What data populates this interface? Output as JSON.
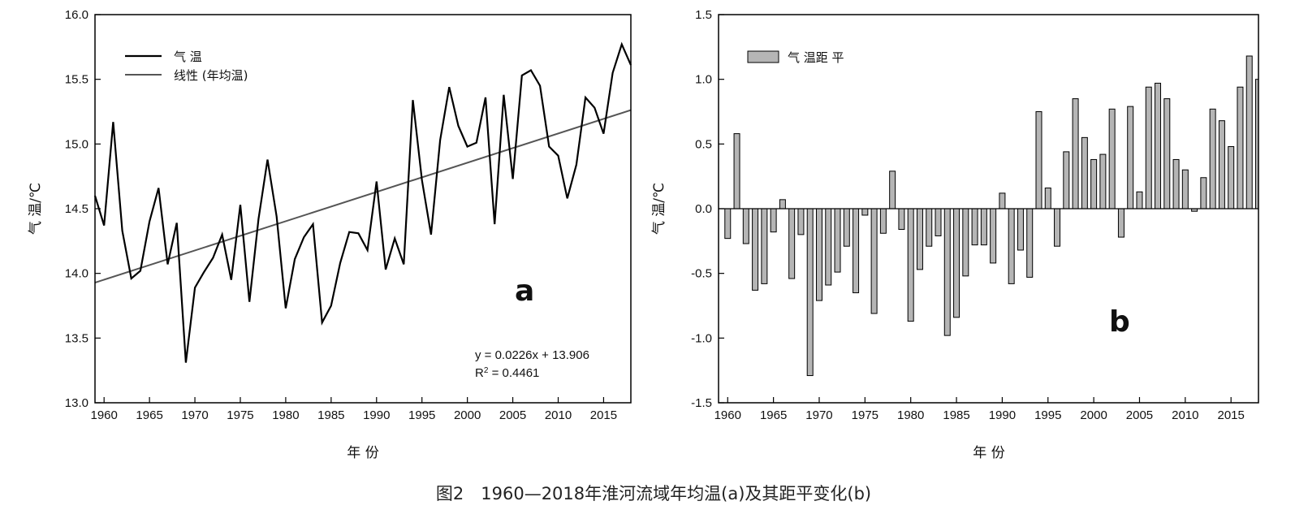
{
  "caption": "图2　1960—2018年淮河流域年均温(a)及其距平变化(b)",
  "chart_data": [
    {
      "panel": "a",
      "type": "line",
      "ylabel": "气 温/℃",
      "xlabel": "年 份",
      "xlim": [
        1959,
        2018
      ],
      "ylim": [
        13.0,
        16.0
      ],
      "xticks": [
        "1960",
        "1965",
        "1970",
        "1975",
        "1980",
        "1985",
        "1990",
        "1995",
        "2000",
        "2005",
        "2010",
        "2015"
      ],
      "yticks": [
        "13.0",
        "13.5",
        "14.0",
        "14.5",
        "15.0",
        "15.5",
        "16.0"
      ],
      "legend": [
        "气 温",
        "线性 (年均温)"
      ],
      "legend_position": "top-left",
      "equation_line1": "y = 0.0226x + 13.906",
      "equation_line2_prefix": "R",
      "equation_line2_sup": "2",
      "equation_line2_suffix": " = 0.4461",
      "trend": {
        "slope": 0.0226,
        "intercept": 13.906,
        "x_start": 1959
      },
      "x": [
        1959,
        1960,
        1961,
        1962,
        1963,
        1964,
        1965,
        1966,
        1967,
        1968,
        1969,
        1970,
        1971,
        1972,
        1973,
        1974,
        1975,
        1976,
        1977,
        1978,
        1979,
        1980,
        1981,
        1982,
        1983,
        1984,
        1985,
        1986,
        1987,
        1988,
        1989,
        1990,
        1991,
        1992,
        1993,
        1994,
        1995,
        1996,
        1997,
        1998,
        1999,
        2000,
        2001,
        2002,
        2003,
        2004,
        2005,
        2006,
        2007,
        2008,
        2009,
        2010,
        2011,
        2012,
        2013,
        2014,
        2015,
        2016,
        2017,
        2018
      ],
      "series": [
        {
          "name": "气 温",
          "values": [
            14.6,
            14.37,
            15.17,
            14.33,
            13.96,
            14.02,
            14.4,
            14.66,
            14.07,
            14.39,
            13.31,
            13.89,
            14.01,
            14.12,
            14.3,
            13.95,
            14.53,
            13.78,
            14.42,
            14.88,
            14.44,
            13.73,
            14.11,
            14.28,
            14.38,
            13.62,
            13.75,
            14.08,
            14.32,
            14.31,
            14.18,
            14.71,
            14.03,
            14.27,
            14.07,
            15.34,
            14.72,
            14.3,
            15.03,
            15.44,
            15.14,
            14.98,
            15.01,
            15.36,
            14.38,
            15.38,
            14.73,
            15.53,
            15.57,
            15.45,
            14.98,
            14.91,
            14.58,
            14.84,
            15.36,
            15.28,
            15.08,
            15.55,
            15.77,
            15.61
          ]
        }
      ],
      "panel_label": "a"
    },
    {
      "panel": "b",
      "type": "bar",
      "ylabel": "气 温/℃",
      "xlabel": "年 份",
      "xlim": [
        1959,
        2018
      ],
      "ylim": [
        -1.5,
        1.5
      ],
      "xticks": [
        "1960",
        "1965",
        "1970",
        "1975",
        "1980",
        "1985",
        "1990",
        "1995",
        "2000",
        "2005",
        "2010",
        "2015"
      ],
      "yticks": [
        "-1.5",
        "-1.0",
        "-0.5",
        "0.0",
        "0.5",
        "1.0",
        "1.5"
      ],
      "legend": [
        "气 温距 平"
      ],
      "legend_position": "top-left",
      "x": [
        1960,
        1961,
        1962,
        1963,
        1964,
        1965,
        1966,
        1967,
        1968,
        1969,
        1970,
        1971,
        1972,
        1973,
        1974,
        1975,
        1976,
        1977,
        1978,
        1979,
        1980,
        1981,
        1982,
        1983,
        1984,
        1985,
        1986,
        1987,
        1988,
        1989,
        1990,
        1991,
        1992,
        1993,
        1994,
        1995,
        1996,
        1997,
        1998,
        1999,
        2000,
        2001,
        2002,
        2003,
        2004,
        2005,
        2006,
        2007,
        2008,
        2009,
        2010,
        2011,
        2012,
        2013,
        2014,
        2015,
        2016,
        2017,
        2018
      ],
      "series": [
        {
          "name": "气 温距 平",
          "values": [
            -0.23,
            0.58,
            -0.27,
            -0.63,
            -0.58,
            -0.18,
            0.07,
            -0.54,
            -0.2,
            -1.29,
            -0.71,
            -0.59,
            -0.49,
            -0.29,
            -0.65,
            -0.05,
            -0.81,
            -0.19,
            0.29,
            -0.16,
            -0.87,
            -0.47,
            -0.29,
            -0.21,
            -0.98,
            -0.84,
            -0.52,
            -0.28,
            -0.28,
            -0.42,
            0.12,
            -0.58,
            -0.32,
            -0.53,
            0.75,
            0.16,
            -0.29,
            0.44,
            0.85,
            0.55,
            0.38,
            0.42,
            0.77,
            -0.22,
            0.79,
            0.13,
            0.94,
            0.97,
            0.85,
            0.38,
            0.3,
            -0.02,
            0.24,
            0.77,
            0.68,
            0.48,
            0.94,
            1.18,
            1.0
          ]
        }
      ],
      "bar_color": "#b5b5b5",
      "panel_label": "b"
    }
  ]
}
